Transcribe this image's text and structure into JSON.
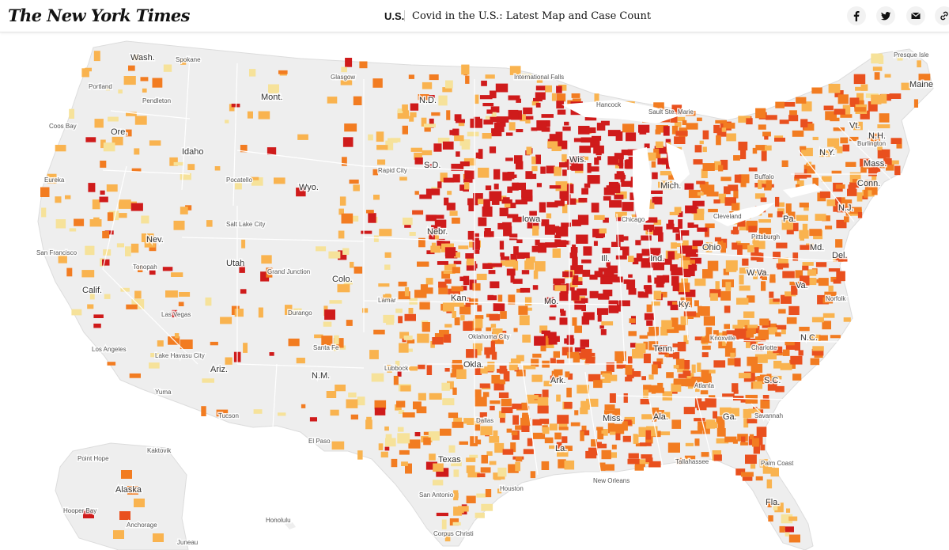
{
  "header": {
    "logo": "The New York Times",
    "section": "U.S.",
    "headline": "Covid in the U.S.: Latest Map and Case Count",
    "share_icons": [
      "facebook-icon",
      "twitter-icon",
      "email-icon",
      "link-icon"
    ]
  },
  "colors": {
    "background": "#ffffff",
    "land_no_data": "#eeeeee",
    "borders": "#ffffff",
    "level_1": "#f6e29a",
    "level_2": "#f9b34f",
    "level_3": "#f27c21",
    "level_4": "#e9501e",
    "level_5": "#cf1b1b"
  },
  "map": {
    "state_labels": [
      "Wash.",
      "Ore.",
      "Idaho",
      "Mont.",
      "N.D.",
      "Wis.",
      "Vt.",
      "N.H.",
      "Maine",
      "N.Y.",
      "Mass.",
      "Conn.",
      "S.D.",
      "Wyo.",
      "Nev.",
      "Calif.",
      "Utah",
      "Colo.",
      "Nebr.",
      "Kan.",
      "Mo.",
      "Iowa",
      "Mich.",
      "Ill.",
      "Ind.",
      "Ohio",
      "Pa.",
      "N.J.",
      "Md.",
      "Del.",
      "W.Va.",
      "Va.",
      "Ky.",
      "Tenn.",
      "N.C.",
      "S.C.",
      "Ga.",
      "Ala.",
      "Miss.",
      "La.",
      "Ark.",
      "Okla.",
      "Texas",
      "N.M.",
      "Ariz.",
      "Fla.",
      "Alaska"
    ],
    "city_labels": [
      "Presque Isle",
      "Spokane",
      "Portland",
      "Pendleton",
      "Coos Bay",
      "Eureka",
      "San Francisco",
      "Tonopah",
      "Las Vegas",
      "Los Angeles",
      "Lake Havasu City",
      "Yuma",
      "Tucson",
      "Glasgow",
      "International Falls",
      "Hancock",
      "Sault Ste. Marie",
      "Burlington",
      "Buffalo",
      "Cleveland",
      "Pittsburgh",
      "Norfolk",
      "Charlotte",
      "Atlanta",
      "Savannah",
      "Tallahassee",
      "Palm Coast",
      "New Orleans",
      "Houston",
      "San Antonio",
      "Corpus Christi",
      "Dallas",
      "Oklahoma City",
      "Lamar",
      "Durango",
      "Grand Junction",
      "Salt Lake City",
      "Pocatello",
      "Rapid City",
      "Chicago",
      "Knoxville",
      "El Paso",
      "Lubbock",
      "Santa Fe",
      "Point Hope",
      "Kaktovik",
      "Anchorage",
      "Hooper Bay",
      "Honolulu",
      "Juneau"
    ]
  }
}
